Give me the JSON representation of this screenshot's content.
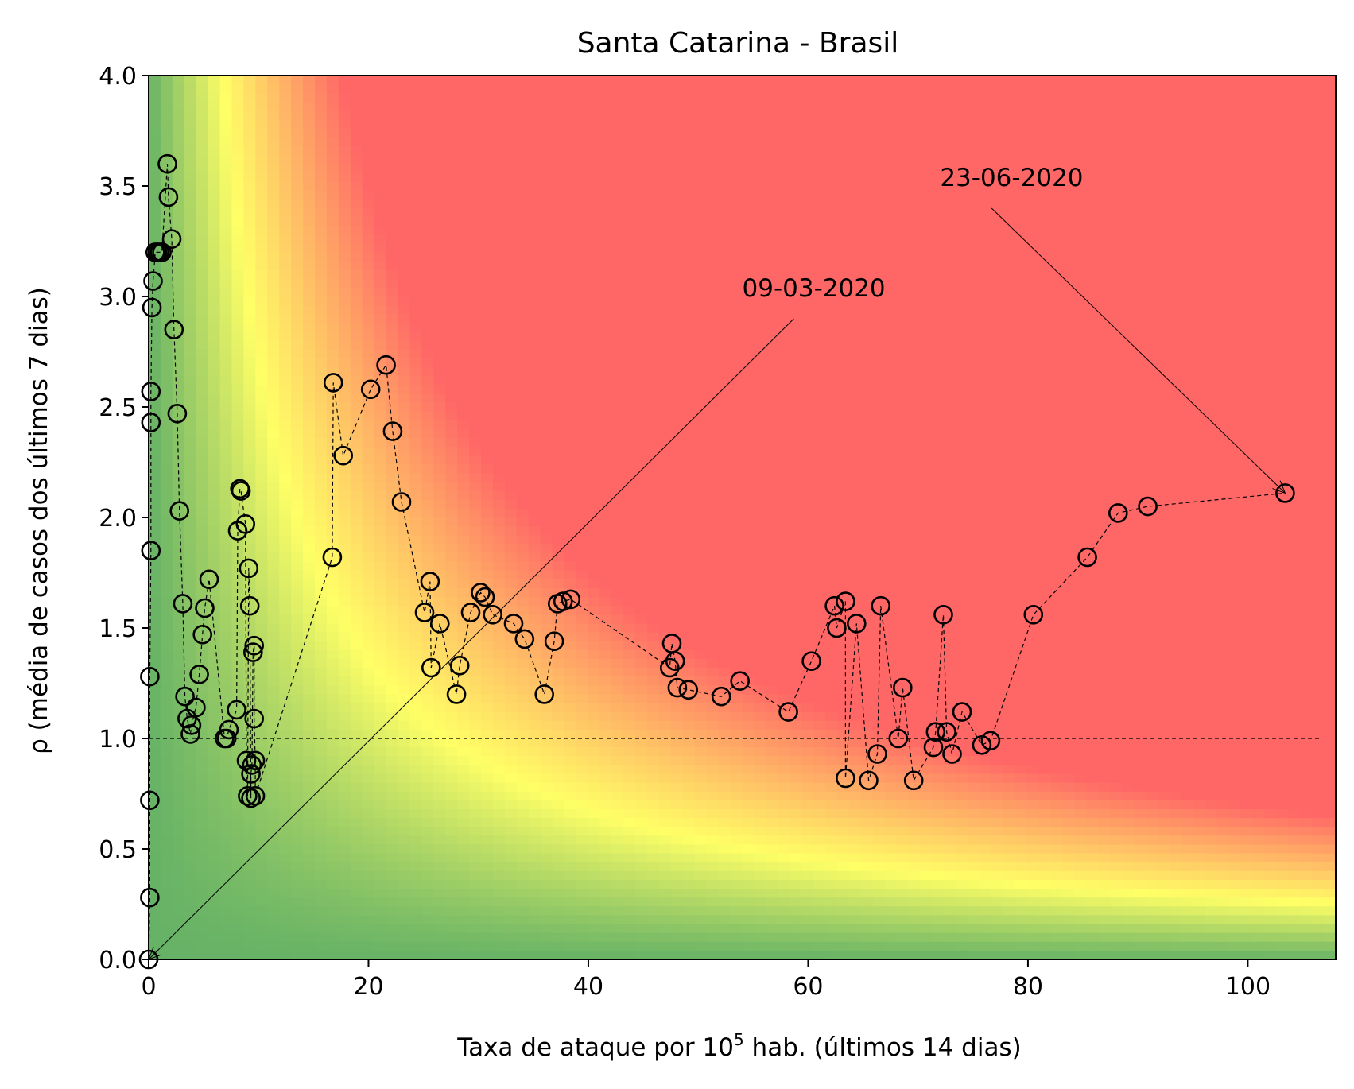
{
  "chart_data": {
    "type": "scatter",
    "title": "Santa Catarina - Brasil",
    "xlabel_prefix": "Taxa de ataque por 10",
    "xlabel_exponent": "5",
    "xlabel_suffix": " hab. (últimos 14 dias)",
    "ylabel": "ρ (média de casos dos últimos 7 dias)",
    "xlim": [
      0,
      108
    ],
    "ylim": [
      0,
      4
    ],
    "xticks": [
      0,
      20,
      40,
      60,
      80,
      100
    ],
    "xtick_labels": [
      "0",
      "20",
      "40",
      "60",
      "80",
      "100"
    ],
    "yticks": [
      0,
      0.5,
      1,
      1.5,
      2,
      2.5,
      3,
      3.5,
      4
    ],
    "ytick_labels": [
      "0.0",
      "0.5",
      "1.0",
      "1.5",
      "2.0",
      "2.5",
      "3.0",
      "3.5",
      "4.0"
    ],
    "reference_line_y": 1.0,
    "background": "risk heatmap: green (low) → yellow → red (high), increasing with x·y",
    "colors": {
      "green": "#66b266",
      "yellow": "#ffff66",
      "red": "#ff6666"
    },
    "annotations": [
      {
        "text": "09-03-2020",
        "point": [
          0,
          0
        ],
        "text_pos": [
          54,
          3.0
        ]
      },
      {
        "text": "23-06-2020",
        "point": [
          103.4,
          2.11
        ],
        "text_pos": [
          72,
          3.5
        ]
      }
    ],
    "series": [
      {
        "points": [
          [
            0,
            0
          ],
          [
            0.1,
            0.28
          ],
          [
            0.1,
            0.72
          ],
          [
            0.1,
            1.28
          ],
          [
            0.2,
            1.85
          ],
          [
            0.2,
            2.43
          ],
          [
            0.2,
            2.57
          ],
          [
            0.3,
            2.95
          ],
          [
            0.4,
            3.07
          ],
          [
            0.6,
            3.2
          ],
          [
            0.8,
            3.2
          ],
          [
            1.0,
            3.2
          ],
          [
            1.2,
            3.2
          ],
          [
            1.7,
            3.6
          ],
          [
            1.8,
            3.45
          ],
          [
            2.1,
            3.26
          ],
          [
            2.3,
            2.85
          ],
          [
            2.6,
            2.47
          ],
          [
            2.8,
            2.03
          ],
          [
            3.1,
            1.61
          ],
          [
            3.3,
            1.19
          ],
          [
            3.5,
            1.09
          ],
          [
            3.8,
            1.02
          ],
          [
            3.9,
            1.06
          ],
          [
            4.3,
            1.14
          ],
          [
            4.6,
            1.29
          ],
          [
            4.9,
            1.47
          ],
          [
            5.1,
            1.59
          ],
          [
            5.5,
            1.72
          ],
          [
            6.9,
            1.0
          ],
          [
            7.1,
            1.0
          ],
          [
            7.3,
            1.04
          ],
          [
            8.0,
            1.13
          ],
          [
            8.1,
            1.94
          ],
          [
            8.3,
            2.13
          ],
          [
            8.4,
            2.12
          ],
          [
            8.8,
            1.97
          ],
          [
            8.9,
            0.9
          ],
          [
            9.0,
            0.74
          ],
          [
            9.1,
            1.77
          ],
          [
            9.2,
            1.6
          ],
          [
            9.3,
            0.73
          ],
          [
            9.3,
            0.84
          ],
          [
            9.4,
            0.88
          ],
          [
            9.5,
            1.39
          ],
          [
            9.6,
            1.42
          ],
          [
            9.6,
            1.09
          ],
          [
            9.7,
            0.9
          ],
          [
            9.7,
            0.74
          ],
          [
            16.7,
            1.82
          ],
          [
            16.8,
            2.61
          ],
          [
            17.7,
            2.28
          ],
          [
            20.2,
            2.58
          ],
          [
            21.6,
            2.69
          ],
          [
            22.2,
            2.39
          ],
          [
            23.0,
            2.07
          ],
          [
            25.1,
            1.57
          ],
          [
            25.6,
            1.71
          ],
          [
            25.7,
            1.32
          ],
          [
            26.5,
            1.52
          ],
          [
            28.0,
            1.2
          ],
          [
            28.3,
            1.33
          ],
          [
            29.3,
            1.57
          ],
          [
            30.2,
            1.66
          ],
          [
            30.6,
            1.64
          ],
          [
            31.3,
            1.56
          ],
          [
            33.2,
            1.52
          ],
          [
            34.2,
            1.45
          ],
          [
            36.0,
            1.2
          ],
          [
            36.9,
            1.44
          ],
          [
            37.2,
            1.61
          ],
          [
            37.7,
            1.62
          ],
          [
            38.4,
            1.63
          ],
          [
            47.4,
            1.32
          ],
          [
            47.6,
            1.43
          ],
          [
            47.9,
            1.35
          ],
          [
            48.1,
            1.23
          ],
          [
            49.1,
            1.22
          ],
          [
            52.1,
            1.19
          ],
          [
            53.8,
            1.26
          ],
          [
            58.2,
            1.12
          ],
          [
            60.3,
            1.35
          ],
          [
            62.4,
            1.6
          ],
          [
            62.6,
            1.5
          ],
          [
            63.4,
            1.62
          ],
          [
            63.4,
            0.82
          ],
          [
            64.4,
            1.52
          ],
          [
            65.5,
            0.81
          ],
          [
            66.3,
            0.93
          ],
          [
            66.6,
            1.6
          ],
          [
            68.2,
            1.0
          ],
          [
            68.6,
            1.23
          ],
          [
            69.6,
            0.81
          ],
          [
            71.4,
            0.96
          ],
          [
            71.6,
            1.03
          ],
          [
            72.3,
            1.56
          ],
          [
            72.6,
            1.03
          ],
          [
            73.1,
            0.93
          ],
          [
            74.0,
            1.12
          ],
          [
            75.8,
            0.97
          ],
          [
            76.6,
            0.99
          ],
          [
            80.5,
            1.56
          ],
          [
            85.4,
            1.82
          ],
          [
            88.2,
            2.02
          ],
          [
            90.9,
            2.05
          ],
          [
            103.4,
            2.11
          ]
        ]
      }
    ]
  }
}
